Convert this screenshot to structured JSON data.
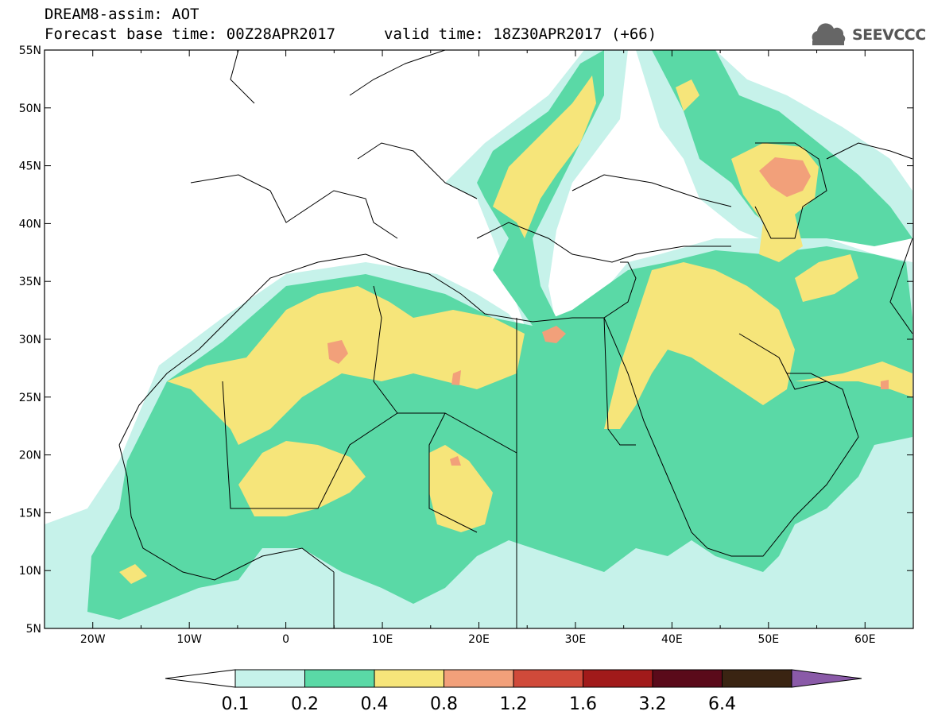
{
  "header": {
    "line1": "DREAM8-assim: AOT",
    "line2": "Forecast base time: 00Z28APR2017",
    "line3": "valid time: 18Z30APR2017 (+66)",
    "logo_text": "SEEVCCC",
    "logo_icon": "cloud-icon"
  },
  "map": {
    "projection": "lat-lon",
    "lon_range": [
      -25,
      65
    ],
    "lat_range": [
      5,
      55
    ],
    "lat_labels": [
      "55N",
      "50N",
      "45N",
      "40N",
      "35N",
      "30N",
      "25N",
      "20N",
      "15N",
      "10N",
      "5N"
    ],
    "lon_labels": [
      "20W",
      "10W",
      "0",
      "10E",
      "20E",
      "30E",
      "40E",
      "50E",
      "60E"
    ]
  },
  "colorbar": {
    "colors": [
      "#ffffff",
      "#c6f2ea",
      "#5ad9a6",
      "#f6e57a",
      "#f2a07a",
      "#d04a3a",
      "#a11a1a",
      "#5a0a1a",
      "#3a2412",
      "#8a5aa8"
    ],
    "labels": [
      "0.1",
      "0.2",
      "0.4",
      "0.8",
      "1.2",
      "1.6",
      "3.2",
      "6.4"
    ]
  }
}
